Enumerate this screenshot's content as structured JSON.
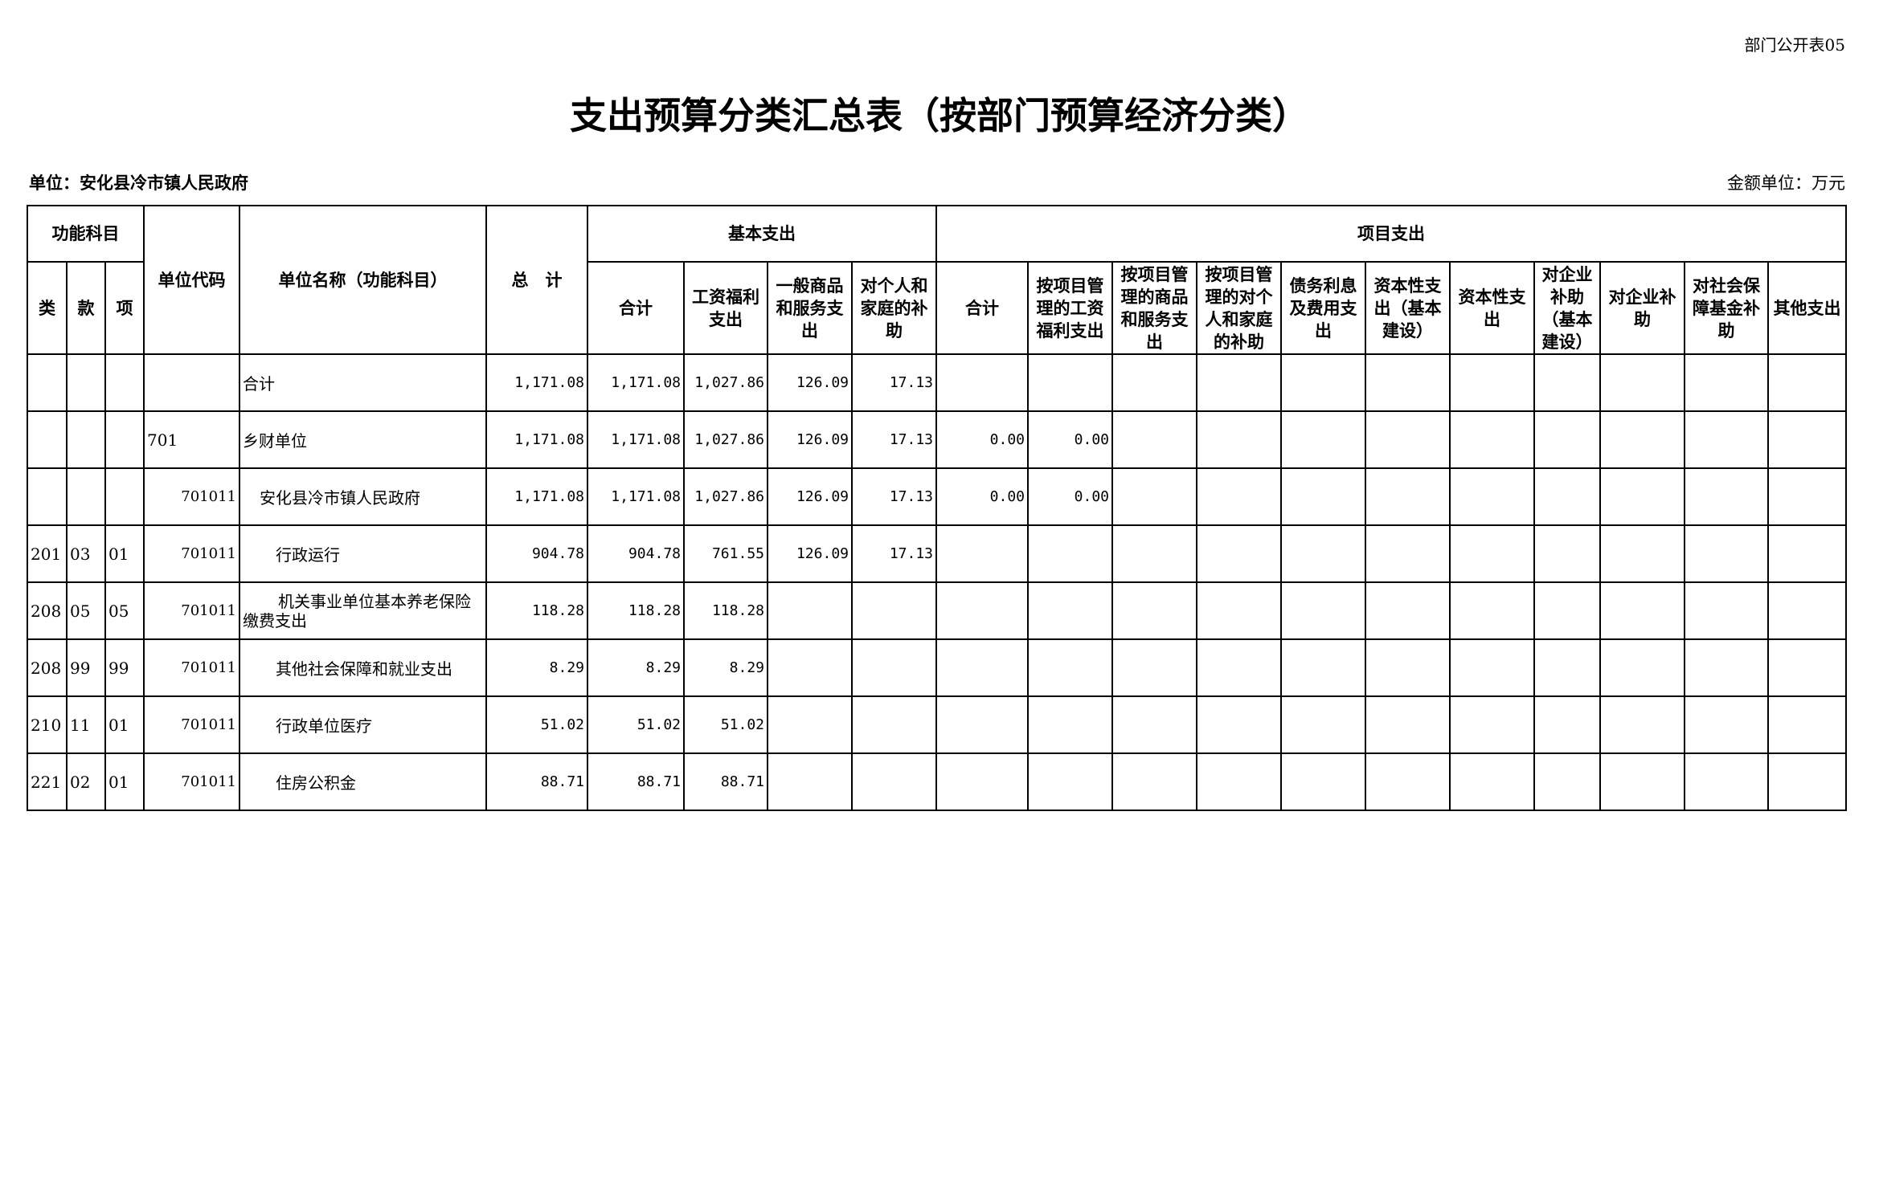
{
  "form_no": "部门公开表05",
  "title": "支出预算分类汇总表（按部门预算经济分类）",
  "unit": "单位：安化县冷市镇人民政府",
  "money_unit": "金额单位：万元",
  "headers": {
    "func_subject": "功能科目",
    "lei": "类",
    "kuan": "款",
    "xiang": "项",
    "unit_code": "单位代码",
    "unit_name": "单位名称（功能科目）",
    "total": "总　计",
    "basic": "基本支出",
    "basic_cols": [
      "合计",
      "工资福利支出",
      "一般商品和服务支出",
      "对个人和家庭的补助"
    ],
    "project": "项目支出",
    "project_cols": [
      "合计",
      "按项目管理的工资福利支出",
      "按项目管理的商品和服务支出",
      "按项目管理的对个人和家庭的补助",
      "债务利息及费用支出",
      "资本性支出（基本建设）",
      "资本性支出",
      "对企业补助（基本建设）",
      "对企业补助",
      "对社会保障基金补助",
      "其他支出"
    ]
  },
  "rows": [
    {
      "lei": "",
      "kuan": "",
      "xiang": "",
      "code": "",
      "name": "合计",
      "indent": 0,
      "total": "1,171.08",
      "b": [
        "1,171.08",
        "1,027.86",
        "126.09",
        "17.13"
      ],
      "p": [
        "",
        "",
        "",
        "",
        "",
        "",
        "",
        "",
        "",
        "",
        ""
      ]
    },
    {
      "lei": "",
      "kuan": "",
      "xiang": "",
      "code": "701",
      "name": "乡财单位",
      "indent": 0,
      "total": "1,171.08",
      "b": [
        "1,171.08",
        "1,027.86",
        "126.09",
        "17.13"
      ],
      "p": [
        "0.00",
        "0.00",
        "",
        "",
        "",
        "",
        "",
        "",
        "",
        "",
        ""
      ]
    },
    {
      "lei": "",
      "kuan": "",
      "xiang": "",
      "code": "701011",
      "name": "安化县冷市镇人民政府",
      "indent": 1,
      "total": "1,171.08",
      "b": [
        "1,171.08",
        "1,027.86",
        "126.09",
        "17.13"
      ],
      "p": [
        "0.00",
        "0.00",
        "",
        "",
        "",
        "",
        "",
        "",
        "",
        "",
        ""
      ]
    },
    {
      "lei": "201",
      "kuan": "03",
      "xiang": "01",
      "code": "701011",
      "name": "行政运行",
      "indent": 2,
      "total": "904.78",
      "b": [
        "904.78",
        "761.55",
        "126.09",
        "17.13"
      ],
      "p": [
        "",
        "",
        "",
        "",
        "",
        "",
        "",
        "",
        "",
        "",
        ""
      ]
    },
    {
      "lei": "208",
      "kuan": "05",
      "xiang": "05",
      "code": "701011",
      "name": "机关事业单位基本养老保险缴费支出",
      "indent": 2,
      "total": "118.28",
      "b": [
        "118.28",
        "118.28",
        "",
        ""
      ],
      "p": [
        "",
        "",
        "",
        "",
        "",
        "",
        "",
        "",
        "",
        "",
        ""
      ]
    },
    {
      "lei": "208",
      "kuan": "99",
      "xiang": "99",
      "code": "701011",
      "name": "其他社会保障和就业支出",
      "indent": 2,
      "total": "8.29",
      "b": [
        "8.29",
        "8.29",
        "",
        ""
      ],
      "p": [
        "",
        "",
        "",
        "",
        "",
        "",
        "",
        "",
        "",
        "",
        ""
      ]
    },
    {
      "lei": "210",
      "kuan": "11",
      "xiang": "01",
      "code": "701011",
      "name": "行政单位医疗",
      "indent": 2,
      "total": "51.02",
      "b": [
        "51.02",
        "51.02",
        "",
        ""
      ],
      "p": [
        "",
        "",
        "",
        "",
        "",
        "",
        "",
        "",
        "",
        "",
        ""
      ]
    },
    {
      "lei": "221",
      "kuan": "02",
      "xiang": "01",
      "code": "701011",
      "name": "住房公积金",
      "indent": 2,
      "total": "88.71",
      "b": [
        "88.71",
        "88.71",
        "",
        ""
      ],
      "p": [
        "",
        "",
        "",
        "",
        "",
        "",
        "",
        "",
        "",
        "",
        ""
      ]
    }
  ]
}
